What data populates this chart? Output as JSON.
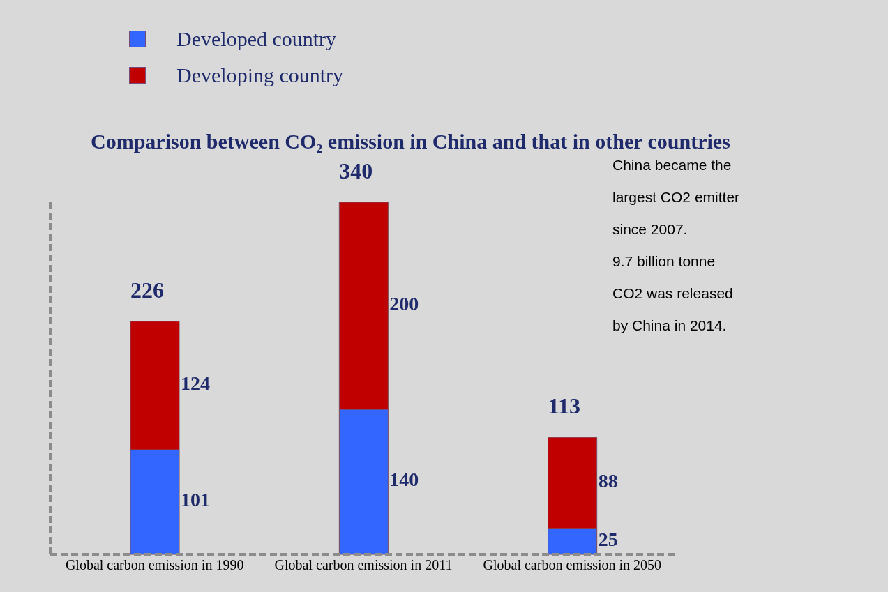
{
  "chart_data": {
    "type": "bar",
    "title": "Comparison between CO₂ emission in China and that in other countries",
    "categories": [
      "Global carbon emission in 1990",
      "Global carbon emission in 2011",
      "Global carbon emission in 2050"
    ],
    "series": [
      {
        "name": "Developed country",
        "color": "#3366ff",
        "values": [
          101,
          140,
          25
        ]
      },
      {
        "name": "Developing country",
        "color": "#c00000",
        "values": [
          124,
          200,
          88
        ]
      }
    ],
    "stacked": true,
    "data_labels": true,
    "totals": [
      "226",
      "340",
      "113"
    ],
    "legend": "top left",
    "grid": false,
    "annotations": [
      "China became the largest CO2 emitter since 2007.",
      "9.7 billion tonne CO2 was released by China in 2014."
    ]
  }
}
